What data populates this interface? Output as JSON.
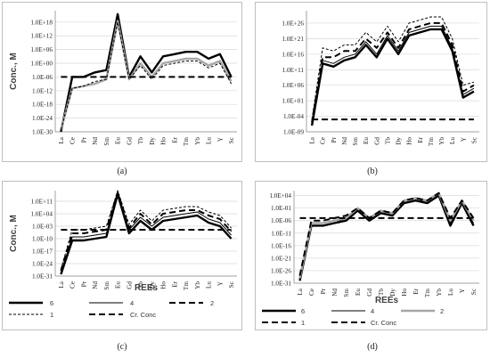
{
  "chart_data": [
    {
      "type": "line",
      "panel_label": "(a)",
      "ylabel": "Conc., M",
      "xlabel": "",
      "y_scale": "log",
      "yticks": [
        "1.0E-30",
        "1.0E-24",
        "1.0E-18",
        "1.0E-12",
        "1.0E-06",
        "1.0E+00",
        "1.0E+06",
        "1.0E+12",
        "1.0E+18"
      ],
      "ylim": [
        1e-30,
        1e+23
      ],
      "categories": [
        "La",
        "Ce",
        "Pr",
        "Nd",
        "Sm",
        "Eu",
        "Gd",
        "Tb",
        "Dy",
        "Ho",
        "Er",
        "Tm",
        "Yb",
        "Lu",
        "Y",
        "Sc"
      ],
      "grid": true,
      "legend": "none",
      "series": [
        {
          "style": "solid-thick",
          "values": [
            1e-30,
            1e-06,
            1e-06,
            0.0001,
            0.001,
            3e+21,
            1e-06,
            1000.0,
            0.0001,
            1000.0,
            10000.0,
            100000.0,
            100000.0,
            100.0,
            10000.0,
            1e-06
          ]
        },
        {
          "style": "gray-thick",
          "values": [
            1e-29,
            1e-11,
            1e-10,
            1e-09,
            1e-07,
            3e+18,
            1e-07,
            1.0,
            1e-06,
            1.0,
            10.0,
            100.0,
            100.0,
            0.1,
            10.0,
            1e-08
          ]
        },
        {
          "style": "dash-thin",
          "values": [
            1e-29,
            1e-11,
            1e-10,
            1e-08,
            1e-07,
            1e+18,
            1e-07,
            0.1,
            1e-07,
            0.1,
            1.0,
            10.0,
            10.0,
            0.01,
            1.0,
            1e-09
          ]
        },
        {
          "style": "dash-thick",
          "values": [
            1e-06,
            1e-06,
            1e-06,
            1e-06,
            1e-06,
            1e-06,
            1e-06,
            1e-06,
            1e-06,
            1e-06,
            1e-06,
            1e-06,
            1e-06,
            1e-06,
            1e-06,
            1e-06
          ]
        }
      ]
    },
    {
      "type": "line",
      "panel_label": "(b)",
      "ylabel": "",
      "xlabel": "",
      "y_scale": "log",
      "yticks": [
        "1.0E-09",
        "1.0E-04",
        "1.0E+01",
        "1.0E+06",
        "1.0E+11",
        "1.0E+16",
        "1.0E+21",
        "1.0E+26"
      ],
      "ylim": [
        1e-09,
        1e+30
      ],
      "categories": [
        "La",
        "Ce",
        "Pr",
        "Nd",
        "Sm",
        "Eu",
        "Gd",
        "Tb",
        "Dy",
        "Ho",
        "Er",
        "Tm",
        "Yb",
        "Lu",
        "Y",
        "Sc"
      ],
      "grid": true,
      "legend": "none",
      "series": [
        {
          "style": "solid-thick",
          "values": [
            1e-07,
            10000000000000.0,
            1000000000000.0,
            100000000000000.0,
            1000000000000000.0,
            1e+19,
            1000000000000000.0,
            1e+21,
            1e+16,
            1e+22,
            1e+23,
            1e+24,
            1e+24,
            1e+17,
            100.0,
            10000.0
          ]
        },
        {
          "style": "dash-thick",
          "values": [
            1e-06,
            1000000000000000.0,
            1000000000000000.0,
            1e+17,
            1e+17,
            1e+21,
            1e+18,
            1e+23,
            1e+18,
            1e+24,
            1e+25,
            1e+26,
            1e+26,
            1e+19,
            10000.0,
            1000000.0
          ]
        },
        {
          "style": "dash-thin",
          "values": [
            1e-05,
            1e+18,
            1e+17,
            1e+19,
            1e+19,
            1e+23,
            1e+20,
            1e+25,
            1e+20,
            1e+26,
            1e+27,
            1e+28,
            1e+28,
            1e+21,
            1000000.0,
            10000000.0
          ]
        },
        {
          "style": "solid-thin",
          "values": [
            1e-07,
            100000000000000.0,
            10000000000000.0,
            1000000000000000.0,
            1e+16,
            1e+20,
            1e+16,
            1e+22,
            1e+17,
            1e+23,
            1e+24,
            1e+25,
            1e+25,
            1e+18,
            1000.0,
            100000.0
          ]
        },
        {
          "style": "dash-thick",
          "values": [
            1e-05,
            1e-05,
            1e-05,
            1e-05,
            1e-05,
            1e-05,
            1e-05,
            1e-05,
            1e-05,
            1e-05,
            1e-05,
            1e-05,
            1e-05,
            1e-05,
            1e-05,
            1e-05
          ]
        }
      ]
    },
    {
      "type": "line",
      "panel_label": "(c)",
      "ylabel": "Conc., M",
      "xlabel": "REEs",
      "y_scale": "log",
      "yticks": [
        "1.0E-31",
        "1.0E-24",
        "1.0E-17",
        "1.0E-10",
        "1.0E-03",
        "1.0E+04",
        "1.0E+11"
      ],
      "ylim": [
        1e-31,
        1e+17
      ],
      "categories": [
        "La",
        "Ce",
        "Pr",
        "Nd",
        "Sm",
        "Eu",
        "Gd",
        "Tb",
        "Dy",
        "Ho",
        "Er",
        "Tm",
        "Yb",
        "Lu",
        "Y",
        "Sc"
      ],
      "grid": true,
      "legend": "bottom",
      "legend_entries": [
        "6",
        "4",
        "2",
        "1",
        "Cr. Conc"
      ],
      "series": [
        {
          "name": "6",
          "style": "solid-thick",
          "values": [
            1e-30,
            1e-11,
            1e-11,
            1e-10,
            1e-09,
            1000000000000000.0,
            1e-07,
            1.0,
            1e-05,
            1.0,
            10.0,
            100.0,
            1000.0,
            0.1,
            0.001,
            1e-10
          ]
        },
        {
          "name": "4",
          "style": "solid-thin",
          "values": [
            1e-29,
            1e-09,
            1e-09,
            1e-08,
            1e-07,
            1e+16,
            1e-05,
            100.0,
            0.001,
            100.0,
            1000.0,
            10000.0,
            100000.0,
            10.0,
            0.1,
            1e-08
          ]
        },
        {
          "name": "2",
          "style": "dash-thick",
          "values": [
            1e-28,
            1e-07,
            1e-07,
            1e-06,
            1e-05,
            1e+16,
            0.0001,
            10000.0,
            0.01,
            10000.0,
            100000.0,
            1000000.0,
            1000000.0,
            1000.0,
            10.0,
            1e-06
          ]
        },
        {
          "name": "1",
          "style": "dash-thin",
          "values": [
            1e-27,
            1e-05,
            1e-05,
            0.0001,
            0.001,
            1e+17,
            0.01,
            1000000.0,
            1.0,
            1000000.0,
            10000000.0,
            100000000.0,
            100000000.0,
            100000.0,
            1000.0,
            0.0001
          ]
        },
        {
          "name": "Cr. Conc",
          "style": "dash-thick",
          "values": [
            1e-05,
            1e-05,
            1e-05,
            1e-05,
            1e-05,
            1e-05,
            1e-05,
            1e-05,
            1e-05,
            1e-05,
            1e-05,
            1e-05,
            1e-05,
            1e-05,
            1e-05,
            1e-05
          ]
        }
      ]
    },
    {
      "type": "line",
      "panel_label": "(d)",
      "ylabel": "",
      "xlabel": "REEs",
      "y_scale": "log",
      "yticks": [
        "1.0E-31",
        "1.0E-26",
        "1.0E-21",
        "1.0E-16",
        "1.0E-11",
        "1.0E-06",
        "1.0E-01",
        "1.0E+04"
      ],
      "ylim": [
        1e-31,
        1000000.0
      ],
      "categories": [
        "La",
        "Ce",
        "Pr",
        "Nd",
        "Sm",
        "Eu",
        "Gd",
        "Tb",
        "Dy",
        "Ho",
        "Er",
        "Tm",
        "Yb",
        "Lu",
        "Y",
        "Sc"
      ],
      "grid": true,
      "legend": "bottom",
      "legend_entries": [
        "6",
        "4",
        "2",
        "1",
        "Cr. Conc"
      ],
      "series": [
        {
          "name": "6",
          "style": "solid-thick",
          "values": [
            1e-30,
            1e-08,
            1e-08,
            1e-07,
            1e-06,
            0.01,
            1e-06,
            0.001,
            0.0001,
            10.0,
            100.0,
            10.0,
            10000.0,
            1e-08,
            10.0,
            1e-08
          ]
        },
        {
          "name": "4",
          "style": "solid-thin",
          "values": [
            1e-29,
            1e-08,
            1e-08,
            1e-07,
            1e-05,
            0.01,
            1e-06,
            0.001,
            0.0001,
            10.0,
            100.0,
            100.0,
            10000.0,
            1e-07,
            10.0,
            1e-07
          ]
        },
        {
          "name": "2",
          "style": "gray-thick",
          "values": [
            1e-29,
            1e-07,
            1e-07,
            1e-06,
            1e-05,
            0.1,
            1e-05,
            0.01,
            0.001,
            100.0,
            1000.0,
            100.0,
            100000.0,
            1e-06,
            100.0,
            1e-06
          ]
        },
        {
          "name": "1",
          "style": "dash-thick",
          "values": [
            1e-28,
            1e-06,
            1e-06,
            1e-05,
            0.0001,
            0.1,
            1e-05,
            0.01,
            0.001,
            100.0,
            1000.0,
            100.0,
            100000.0,
            1e-05,
            100.0,
            1e-05
          ]
        },
        {
          "name": "Cr. Conc",
          "style": "dash-thick",
          "values": [
            1e-05,
            1e-05,
            1e-05,
            1e-05,
            1e-05,
            1e-05,
            1e-05,
            1e-05,
            1e-05,
            1e-05,
            1e-05,
            1e-05,
            1e-05,
            1e-05,
            1e-05,
            1e-05
          ]
        }
      ]
    }
  ]
}
